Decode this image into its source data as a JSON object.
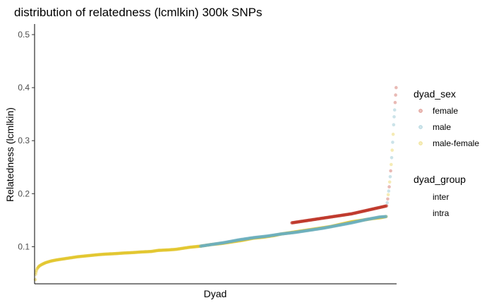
{
  "chart_data": {
    "type": "scatter",
    "title": "distribution of relatedness (lcmlkin) 300k SNPs",
    "xlabel": "Dyad",
    "ylabel": "Relatedness (lcmlkin)",
    "ylim": [
      0.03,
      0.52
    ],
    "y_ticks": [
      0.1,
      0.2,
      0.3,
      0.4,
      0.5
    ],
    "y_tick_labels": [
      "0.1",
      "0.2",
      "0.3",
      "0.4",
      "0.5"
    ],
    "x_ticks": [],
    "grid": false,
    "legend_position": "right",
    "legends": [
      {
        "title": "dyad_sex",
        "entries": [
          {
            "label": "female",
            "color": "#c0392b"
          },
          {
            "label": "male",
            "color": "#6ab0c0"
          },
          {
            "label": "male-female",
            "color": "#e2c62a"
          }
        ]
      },
      {
        "title": "dyad_group",
        "entries": [
          {
            "label": "inter"
          },
          {
            "label": "intra"
          }
        ]
      }
    ],
    "colors": {
      "female": "#c0392b",
      "male": "#6ab0c0",
      "male-female": "#e2c62a"
    },
    "series": [
      {
        "name": "male-female",
        "x": [
          0,
          1,
          2,
          3,
          5,
          8,
          12,
          20,
          30,
          45,
          60,
          80,
          100,
          120,
          150,
          180,
          200,
          230,
          250,
          280,
          300,
          330,
          350,
          380,
          400,
          420,
          440,
          470,
          500,
          530,
          560,
          590,
          620,
          650,
          680,
          700,
          720,
          750,
          780,
          800,
          820,
          840,
          860,
          880,
          900,
          930,
          960,
          985,
          1000
        ],
        "y": [
          0.038,
          0.048,
          0.052,
          0.055,
          0.058,
          0.061,
          0.064,
          0.067,
          0.07,
          0.073,
          0.075,
          0.077,
          0.079,
          0.081,
          0.083,
          0.085,
          0.086,
          0.087,
          0.088,
          0.089,
          0.09,
          0.091,
          0.093,
          0.094,
          0.095,
          0.097,
          0.099,
          0.101,
          0.104,
          0.106,
          0.109,
          0.112,
          0.116,
          0.118,
          0.121,
          0.124,
          0.126,
          0.129,
          0.132,
          0.134,
          0.136,
          0.138,
          0.141,
          0.144,
          0.147,
          0.15,
          0.153,
          0.155,
          0.157
        ]
      },
      {
        "name": "male",
        "x": [
          470,
          500,
          540,
          580,
          620,
          660,
          700,
          740,
          780,
          820,
          860,
          900,
          940,
          980,
          1000
        ],
        "y": [
          0.101,
          0.104,
          0.108,
          0.113,
          0.117,
          0.12,
          0.124,
          0.127,
          0.131,
          0.135,
          0.14,
          0.145,
          0.151,
          0.156,
          0.157
        ]
      },
      {
        "name": "female",
        "x": [
          730,
          760,
          790,
          820,
          850,
          880,
          900,
          920,
          940,
          960,
          980,
          1000
        ],
        "y": [
          0.145,
          0.148,
          0.151,
          0.154,
          0.157,
          0.16,
          0.162,
          0.165,
          0.168,
          0.171,
          0.174,
          0.177
        ]
      }
    ]
  }
}
